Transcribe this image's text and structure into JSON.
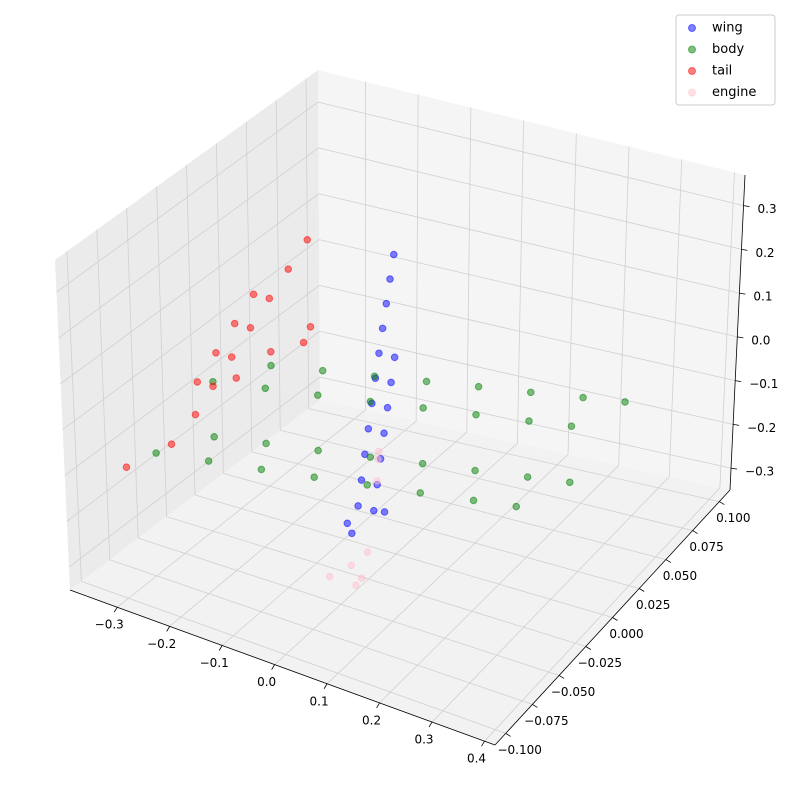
{
  "chart_data": {
    "type": "scatter3d",
    "alpha": 0.5,
    "grid": true,
    "legend": "upper right",
    "xlim": [
      -0.39,
      0.42
    ],
    "ylim": [
      -0.11,
      0.11
    ],
    "zlim": [
      -0.35,
      0.37
    ],
    "xticks": [
      {
        "value": -0.3,
        "label": "−0.3"
      },
      {
        "value": -0.2,
        "label": "−0.2"
      },
      {
        "value": -0.1,
        "label": "−0.1"
      },
      {
        "value": 0,
        "label": "0.0"
      },
      0.1,
      0.2,
      0.3,
      0.4
    ],
    "yticks": [
      {
        "value": -0.1,
        "label": "−0.100"
      },
      {
        "value": -0.075,
        "label": "−0.075"
      },
      {
        "value": -0.05,
        "label": "−0.050"
      },
      {
        "value": -0.025,
        "label": "−0.025"
      },
      {
        "value": 0,
        "label": "0.000"
      },
      0.025,
      {
        "value": 0.05,
        "label": "0.050"
      },
      0.075,
      {
        "value": 0.1,
        "label": "0.100"
      }
    ],
    "zticks": [
      {
        "value": -0.3,
        "label": "−0.3"
      },
      {
        "value": -0.2,
        "label": "−0.2"
      },
      {
        "value": -0.1,
        "label": "−0.1"
      },
      {
        "value": 0,
        "label": "0.0"
      },
      0.1,
      0.2,
      0.3
    ],
    "series": [
      {
        "name": "wing",
        "color": "#0000ff",
        "x": [
          -0.02,
          -0.037,
          -0.054,
          -0.071,
          -0.088,
          -0.105,
          -0.122,
          -0.139,
          -0.156,
          -0.173,
          -0.19,
          0.01,
          -0.007,
          -0.024,
          -0.041,
          -0.058,
          -0.075,
          -0.092,
          0.0,
          -0.03,
          0.02
        ],
        "y": [
          -0.025,
          -0.014,
          -0.003,
          0.008,
          0.019,
          0.03,
          0.041,
          0.052,
          0.063,
          0.074,
          0.085,
          -0.025,
          -0.014,
          -0.003,
          0.008,
          0.019,
          0.03,
          0.041,
          -0.04,
          -0.03,
          -0.02
        ],
        "z": [
          -0.2,
          -0.173,
          -0.146,
          -0.119,
          -0.092,
          -0.065,
          -0.038,
          -0.011,
          0.016,
          0.043,
          0.07,
          -0.2,
          -0.173,
          -0.146,
          -0.119,
          -0.092,
          -0.065,
          -0.038,
          -0.22,
          -0.23,
          -0.21
        ]
      },
      {
        "name": "body",
        "color": "#008000",
        "x": [
          -0.35,
          -0.35,
          -0.35,
          -0.35,
          -0.25,
          -0.25,
          -0.25,
          -0.25,
          -0.15,
          -0.15,
          -0.15,
          -0.15,
          -0.05,
          -0.05,
          -0.05,
          -0.05,
          0.05,
          0.05,
          0.05,
          0.05,
          0.15,
          0.15,
          0.15,
          0.15,
          0.25,
          0.25,
          0.25,
          0.25,
          0.33,
          0.33,
          0.33,
          0.33
        ],
        "y": [
          0.05,
          0,
          -0.05,
          0,
          0.05,
          0,
          -0.05,
          0,
          0.05,
          0,
          -0.05,
          0,
          0.05,
          0,
          -0.05,
          0,
          0.05,
          0,
          -0.05,
          0,
          0.05,
          0,
          -0.05,
          0,
          0.05,
          0,
          -0.05,
          0,
          0.05,
          0,
          -0.05,
          0
        ],
        "z": [
          -0.15,
          -0.09,
          -0.15,
          -0.21,
          -0.132,
          -0.072,
          -0.132,
          -0.192,
          -0.115,
          -0.055,
          -0.115,
          -0.175,
          -0.097,
          -0.037,
          -0.097,
          -0.157,
          -0.079,
          -0.019,
          -0.079,
          -0.139,
          -0.062,
          -0.002,
          -0.062,
          -0.122,
          -0.044,
          0.016,
          -0.044,
          -0.104,
          -0.03,
          0.03,
          -0.03,
          -0.09
        ]
      },
      {
        "name": "tail",
        "color": "#ff0000",
        "x": [
          -0.35,
          -0.34,
          -0.33,
          -0.32,
          -0.31,
          -0.3,
          -0.38,
          -0.37,
          -0.36,
          -0.35,
          -0.34,
          -0.32,
          -0.34,
          -0.35,
          -0.35,
          -0.34,
          -0.32
        ],
        "y": [
          0,
          0.012,
          0.024,
          0.036,
          0.048,
          0.06,
          0,
          0.012,
          0.024,
          0.036,
          -0.08,
          -0.05,
          -0.02,
          0.02,
          0.05,
          0.08,
          0.065
        ],
        "z": [
          -0.1,
          -0.056,
          -0.012,
          0.032,
          0.076,
          0.12,
          -0.1,
          -0.056,
          -0.012,
          0.032,
          -0.12,
          -0.12,
          -0.12,
          -0.12,
          -0.12,
          -0.12,
          -0.12
        ]
      },
      {
        "name": "engine",
        "color": "#ffc0cb",
        "x": [
          0.02,
          0.04,
          0.0,
          0.03,
          0.05,
          -0.1,
          -0.12,
          -0.08
        ],
        "y": [
          -0.05,
          -0.05,
          -0.06,
          -0.04,
          -0.06,
          0.03,
          0.04,
          0.02
        ],
        "z": [
          -0.26,
          -0.28,
          -0.27,
          -0.25,
          -0.27,
          -0.24,
          -0.25,
          -0.26
        ]
      }
    ]
  }
}
